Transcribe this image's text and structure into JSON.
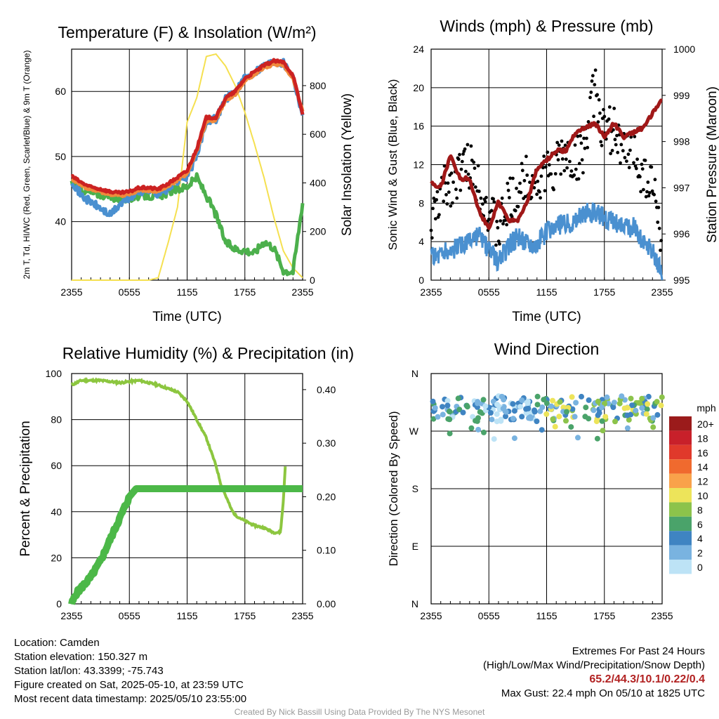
{
  "colors": {
    "red": "#cc2222",
    "orange": "#f08a3c",
    "blue": "#4a90d0",
    "green": "#4cb04c",
    "yellow": "#f5e050",
    "maroon": "#a01818",
    "black": "#000000",
    "rh_green": "#8cc63f",
    "precip_green": "#4cb848"
  },
  "chart_data": [
    {
      "type": "line",
      "title": "Temperature (F) & Insolation (W/m²)",
      "xlabel": "Time (UTC)",
      "ylabel": "2m T, Td, HI/WC (Red, Green, Scarlet/Blue) & 9m T (Orange)",
      "y2label": "Solar Insolation (Yellow)",
      "x_ticks": [
        "2355",
        "0555",
        "1155",
        "1755",
        "2355"
      ],
      "ylim": [
        31,
        66.5
      ],
      "y_ticks": [
        40,
        50,
        60
      ],
      "y2lim": [
        0,
        950
      ],
      "y2_ticks": [
        0,
        200,
        400,
        600,
        800
      ],
      "series": [
        {
          "color_key": "red",
          "values": [
            [
              0,
              47
            ],
            [
              1,
              46
            ],
            [
              2,
              45.3
            ],
            [
              3,
              45
            ],
            [
              4,
              44.6
            ],
            [
              5,
              44.4
            ],
            [
              6,
              44.6
            ],
            [
              7,
              45.2
            ],
            [
              8,
              45.2
            ],
            [
              9,
              45
            ],
            [
              10,
              45.8
            ],
            [
              11,
              46.8
            ],
            [
              12,
              47.8
            ],
            [
              13,
              51.2
            ],
            [
              14,
              56
            ],
            [
              15,
              56
            ],
            [
              16,
              59
            ],
            [
              17,
              60
            ],
            [
              18,
              62
            ],
            [
              19,
              63
            ],
            [
              20,
              64
            ],
            [
              21,
              64.7
            ],
            [
              22,
              64.5
            ],
            [
              23,
              62.5
            ],
            [
              24,
              56.5
            ]
          ]
        },
        {
          "color_key": "orange",
          "values": [
            [
              0,
              46.6
            ],
            [
              1,
              45.6
            ],
            [
              2,
              44.9
            ],
            [
              3,
              44.6
            ],
            [
              4,
              44.2
            ],
            [
              5,
              44
            ],
            [
              6,
              44.2
            ],
            [
              7,
              44.8
            ],
            [
              8,
              44.8
            ],
            [
              9,
              44.6
            ],
            [
              10,
              45.4
            ],
            [
              11,
              46.4
            ],
            [
              12,
              47.4
            ],
            [
              13,
              50.8
            ],
            [
              14,
              55.5
            ],
            [
              15,
              55.6
            ],
            [
              16,
              58.6
            ],
            [
              17,
              59.6
            ],
            [
              18,
              61.6
            ],
            [
              19,
              62.6
            ],
            [
              20,
              63.6
            ],
            [
              21,
              64.2
            ],
            [
              22,
              64
            ],
            [
              23,
              62
            ],
            [
              24,
              57
            ]
          ]
        },
        {
          "color_key": "green",
          "values": [
            [
              0,
              46
            ],
            [
              1,
              45
            ],
            [
              2,
              44.4
            ],
            [
              3,
              44.2
            ],
            [
              4,
              43.8
            ],
            [
              5,
              43.5
            ],
            [
              6,
              43.5
            ],
            [
              7,
              44
            ],
            [
              8,
              44
            ],
            [
              9,
              43.7
            ],
            [
              10,
              44.5
            ],
            [
              11,
              45
            ],
            [
              12,
              45.4
            ],
            [
              13,
              46.8
            ],
            [
              14,
              44
            ],
            [
              15,
              41
            ],
            [
              16,
              36.8
            ],
            [
              17,
              35.8
            ],
            [
              18,
              35.6
            ],
            [
              19,
              35.2
            ],
            [
              20,
              37
            ],
            [
              21,
              36
            ],
            [
              22,
              32.5
            ],
            [
              23,
              32.3
            ],
            [
              24,
              43
            ]
          ]
        },
        {
          "color_key": "blue",
          "values": [
            [
              0,
              46.4
            ],
            [
              1,
              44
            ],
            [
              2,
              43
            ],
            [
              3,
              42
            ],
            [
              4,
              41
            ],
            [
              5,
              42.6
            ],
            [
              6,
              43.6
            ],
            [
              7,
              44.6
            ],
            [
              8,
              44.8
            ],
            [
              9,
              44.3
            ],
            [
              10,
              45
            ],
            [
              11,
              46.3
            ],
            [
              12,
              47
            ],
            [
              13,
              50
            ],
            [
              14,
              55.6
            ],
            [
              15,
              55.8
            ],
            [
              16,
              58.9
            ],
            [
              17,
              60
            ],
            [
              18,
              62
            ],
            [
              19,
              63
            ],
            [
              20,
              64
            ],
            [
              21,
              64.6
            ],
            [
              22,
              64.4
            ],
            [
              23,
              62.3
            ],
            [
              24,
              56.5
            ]
          ]
        },
        {
          "color_key": "yellow",
          "axis": "y2",
          "values": [
            [
              0,
              0
            ],
            [
              3,
              0
            ],
            [
              6,
              0
            ],
            [
              8,
              0
            ],
            [
              9,
              10
            ],
            [
              10,
              150
            ],
            [
              11,
              300
            ],
            [
              12,
              650
            ],
            [
              13,
              750
            ],
            [
              14,
              920
            ],
            [
              15,
              930
            ],
            [
              16,
              880
            ],
            [
              17,
              800
            ],
            [
              18,
              690
            ],
            [
              19,
              560
            ],
            [
              20,
              420
            ],
            [
              21,
              260
            ],
            [
              22,
              120
            ],
            [
              23,
              50
            ],
            [
              24,
              10
            ]
          ]
        }
      ]
    },
    {
      "type": "scatter",
      "title": "Winds (mph) & Pressure (mb)",
      "xlabel": "Time (UTC)",
      "ylabel": "Sonic Wind & Gust (Blue, Black)",
      "y2label": "Station Pressure (Maroon)",
      "x_ticks": [
        "2355",
        "0555",
        "1155",
        "1755",
        "2355"
      ],
      "ylim": [
        0,
        24
      ],
      "y_ticks": [
        0,
        4,
        8,
        12,
        16,
        20,
        24
      ],
      "y2lim": [
        995,
        1000
      ],
      "y2_ticks": [
        995,
        996,
        997,
        998,
        999,
        1000
      ],
      "series": [
        {
          "name": "Sonic Wind",
          "color_key": "blue",
          "values": [
            [
              0,
              2.5
            ],
            [
              1,
              2.8
            ],
            [
              2,
              3
            ],
            [
              3,
              3.5
            ],
            [
              4,
              4
            ],
            [
              5,
              4.5
            ],
            [
              6,
              3
            ],
            [
              7,
              2
            ],
            [
              8,
              3.5
            ],
            [
              9,
              4.5
            ],
            [
              10,
              4
            ],
            [
              11,
              3.8
            ],
            [
              12,
              5
            ],
            [
              13,
              5.5
            ],
            [
              14,
              6
            ],
            [
              15,
              6.2
            ],
            [
              16,
              7
            ],
            [
              17,
              7
            ],
            [
              18,
              6.5
            ],
            [
              19,
              6
            ],
            [
              20,
              5.5
            ],
            [
              21,
              5.5
            ],
            [
              22,
              4
            ],
            [
              23,
              3
            ],
            [
              24,
              0.5
            ]
          ]
        },
        {
          "name": "Gust",
          "color_key": "black",
          "values": [
            [
              0,
              5.5
            ],
            [
              1,
              9
            ],
            [
              2,
              10
            ],
            [
              3,
              11.5
            ],
            [
              4,
              12
            ],
            [
              5,
              10
            ],
            [
              6,
              7
            ],
            [
              7,
              5
            ],
            [
              8,
              8
            ],
            [
              9,
              9
            ],
            [
              10,
              11
            ],
            [
              11,
              10
            ],
            [
              12,
              11
            ],
            [
              13,
              12
            ],
            [
              14,
              13
            ],
            [
              15,
              12
            ],
            [
              16,
              14
            ],
            [
              17,
              20
            ],
            [
              18,
              15
            ],
            [
              19,
              16
            ],
            [
              20,
              13
            ],
            [
              21,
              13.5
            ],
            [
              22,
              11
            ],
            [
              23,
              10
            ],
            [
              24,
              4
            ]
          ]
        },
        {
          "name": "Pressure",
          "color_key": "maroon",
          "axis": "y2",
          "values": [
            [
              0,
              997.1
            ],
            [
              1,
              997
            ],
            [
              2,
              997.7
            ],
            [
              3,
              997.2
            ],
            [
              4,
              997.2
            ],
            [
              5,
              996.5
            ],
            [
              6,
              996.1
            ],
            [
              7,
              996.7
            ],
            [
              8,
              996.3
            ],
            [
              9,
              996.3
            ],
            [
              10,
              996.7
            ],
            [
              11,
              997.4
            ],
            [
              12,
              997.6
            ],
            [
              13,
              997.8
            ],
            [
              14,
              997.8
            ],
            [
              15,
              998.2
            ],
            [
              16,
              998.3
            ],
            [
              17,
              998.4
            ],
            [
              18,
              998.1
            ],
            [
              19,
              998.4
            ],
            [
              20,
              998.1
            ],
            [
              21,
              998.2
            ],
            [
              22,
              998.3
            ],
            [
              23,
              998.6
            ],
            [
              24,
              998.9
            ]
          ]
        }
      ]
    },
    {
      "type": "line",
      "title": "Relative Humidity (%) & Precipitation (in)",
      "ylabel": "Percent & Precipitation",
      "x_ticks": [
        "2355",
        "0555",
        "1155",
        "1755",
        "2355"
      ],
      "ylim": [
        0,
        100
      ],
      "y_ticks": [
        0,
        20,
        40,
        60,
        80,
        100
      ],
      "y2lim": [
        0,
        0.43
      ],
      "y2_ticks": [
        "0.00",
        "0.10",
        "0.20",
        "0.30",
        "0.40"
      ],
      "series": [
        {
          "color_key": "rh_green",
          "values": [
            [
              0,
              95
            ],
            [
              1,
              97
            ],
            [
              3,
              97
            ],
            [
              5,
              96
            ],
            [
              7,
              97
            ],
            [
              9,
              95
            ],
            [
              11,
              92
            ],
            [
              12,
              88
            ],
            [
              13,
              80
            ],
            [
              14,
              72
            ],
            [
              15,
              60
            ],
            [
              15.5,
              52
            ],
            [
              16.6,
              41
            ],
            [
              17,
              38.5
            ],
            [
              18,
              36
            ],
            [
              19,
              34
            ],
            [
              20,
              33
            ],
            [
              21,
              31
            ],
            [
              21.7,
              31
            ],
            [
              22,
              45
            ],
            [
              22.2,
              60
            ]
          ]
        },
        {
          "color_key": "precip_green",
          "axis": "y2",
          "values": [
            [
              0,
              0
            ],
            [
              0.5,
              0.02
            ],
            [
              1.5,
              0.04
            ],
            [
              2,
              0.05
            ],
            [
              3,
              0.08
            ],
            [
              3.5,
              0.1
            ],
            [
              4.5,
              0.14
            ],
            [
              5.5,
              0.18
            ],
            [
              6,
              0.2
            ],
            [
              6.7,
              0.215
            ],
            [
              24,
              0.215
            ]
          ]
        }
      ]
    },
    {
      "type": "scatter",
      "title": "Wind Direction",
      "ylabel": "Direction (Colored By Speed)",
      "x_ticks": [
        "2355",
        "0555",
        "1155",
        "1755",
        "2355"
      ],
      "y_ticks": [
        "N",
        "E",
        "S",
        "W",
        "N"
      ],
      "ylim": [
        0,
        360
      ],
      "legend_title": "mph",
      "legend_labels": [
        "20+",
        "18",
        "16",
        "14",
        "12",
        "10",
        "8",
        "6",
        "4",
        "2",
        "0"
      ],
      "legend_colors": [
        "#9b1b1b",
        "#c8202a",
        "#e0392b",
        "#f06a2e",
        "#f9a24a",
        "#ede45a",
        "#8cc34b",
        "#4aa36a",
        "#3f84c2",
        "#79b3e0",
        "#bde3f6"
      ],
      "direction_band": [
        285,
        325
      ]
    }
  ],
  "footer": {
    "location": "Location: Camden",
    "elevation": "Station elevation: 150.327 m",
    "latlon": "Station lat/lon: 43.3399; -75.743",
    "created": "Figure created on Sat, 2025-05-10, at 23:59 UTC",
    "recent": "Most recent data timestamp: 2025/05/10 23:55:00",
    "extremes_title": "Extremes For Past 24 Hours",
    "extremes_sub": "(High/Low/Max Wind/Precipitation/Snow Depth)",
    "extremes_values": "65.2/44.3/10.1/0.22/0.4",
    "max_gust": "Max Gust: 22.4 mph On 05/10 at 1825 UTC",
    "credit": "Created By Nick Bassill Using Data Provided By The NYS Mesonet"
  }
}
